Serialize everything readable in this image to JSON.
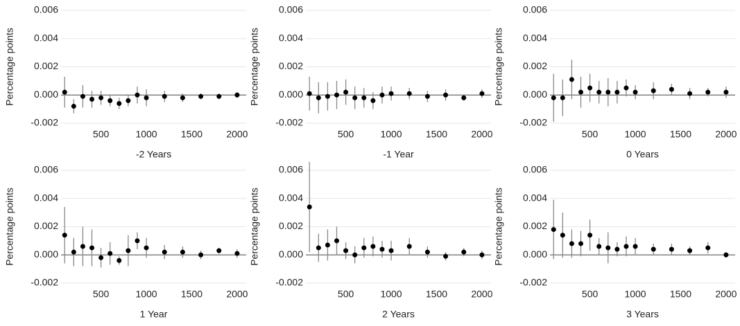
{
  "chart_data": [
    {
      "type": "errorbar",
      "xlabel": "-2 Years",
      "ylabel": "Percentage points",
      "x": [
        100,
        200,
        300,
        400,
        500,
        600,
        700,
        800,
        900,
        1000,
        1200,
        1400,
        1600,
        1800,
        2000
      ],
      "values": [
        0.0002,
        -0.0008,
        -0.0001,
        -0.0003,
        -0.0002,
        -0.0004,
        -0.0006,
        -0.0004,
        0.0,
        -0.0002,
        -0.0001,
        -0.0002,
        -0.0001,
        -0.0001,
        0.0
      ],
      "errors": [
        0.0011,
        0.0005,
        0.0008,
        0.0006,
        0.0005,
        0.0004,
        0.0004,
        0.0004,
        0.0006,
        0.0006,
        0.0004,
        0.0003,
        0.0002,
        0.0002,
        0.0002
      ],
      "color": "#000000",
      "error_color": "#888888",
      "xlim": [
        60,
        2100
      ],
      "xticks": [
        500,
        1000,
        1500,
        2000
      ],
      "ylim": [
        -0.002,
        0.006
      ],
      "yticks": [
        {
          "value": -0.002,
          "label": "-0.002"
        },
        {
          "value": 0,
          "label": "0.000"
        },
        {
          "value": 0.002,
          "label": "0.002"
        },
        {
          "value": 0.004,
          "label": "0.004"
        },
        {
          "value": 0.006,
          "label": "0.006"
        }
      ],
      "grid": true
    },
    {
      "type": "errorbar",
      "xlabel": "-1 Year",
      "ylabel": "Percentage points",
      "x": [
        100,
        200,
        300,
        400,
        500,
        600,
        700,
        800,
        900,
        1000,
        1200,
        1400,
        1600,
        1800,
        2000
      ],
      "values": [
        0.0001,
        -0.0002,
        -0.0001,
        0.0,
        0.0002,
        -0.0002,
        -0.0002,
        -0.0004,
        0.0,
        0.0001,
        0.0001,
        -0.0001,
        0.0,
        -0.0002,
        0.0001
      ],
      "errors": [
        0.0012,
        0.0011,
        0.001,
        0.001,
        0.0009,
        0.0008,
        0.0007,
        0.0006,
        0.0006,
        0.0005,
        0.0004,
        0.0004,
        0.0004,
        0.0002,
        0.0003
      ],
      "color": "#000000",
      "error_color": "#888888",
      "xlim": [
        60,
        2100
      ],
      "xticks": [
        500,
        1000,
        1500,
        2000
      ],
      "ylim": [
        -0.002,
        0.006
      ],
      "yticks": [
        {
          "value": -0.002,
          "label": "-0.002"
        },
        {
          "value": 0,
          "label": "0.000"
        },
        {
          "value": 0.002,
          "label": "0.002"
        },
        {
          "value": 0.004,
          "label": "0.004"
        },
        {
          "value": 0.006,
          "label": "0.006"
        }
      ],
      "grid": true
    },
    {
      "type": "errorbar",
      "xlabel": "0 Years",
      "ylabel": "Percentage points",
      "x": [
        100,
        200,
        300,
        400,
        500,
        600,
        700,
        800,
        900,
        1000,
        1200,
        1400,
        1600,
        1800,
        2000
      ],
      "values": [
        -0.0002,
        -0.0002,
        0.0011,
        0.0002,
        0.0005,
        0.0002,
        0.0002,
        0.0002,
        0.0005,
        0.0002,
        0.0003,
        0.0004,
        0.0001,
        0.0002,
        0.0002
      ],
      "errors": [
        0.0017,
        0.0013,
        0.0014,
        0.0011,
        0.001,
        0.0008,
        0.001,
        0.0008,
        0.0006,
        0.0005,
        0.0006,
        0.0004,
        0.0004,
        0.0003,
        0.0004
      ],
      "color": "#000000",
      "error_color": "#888888",
      "xlim": [
        60,
        2100
      ],
      "xticks": [
        500,
        1000,
        1500,
        2000
      ],
      "ylim": [
        -0.002,
        0.006
      ],
      "yticks": [
        {
          "value": -0.002,
          "label": "-0.002"
        },
        {
          "value": 0,
          "label": "0.000"
        },
        {
          "value": 0.002,
          "label": "0.002"
        },
        {
          "value": 0.004,
          "label": "0.004"
        },
        {
          "value": 0.006,
          "label": "0.006"
        }
      ],
      "grid": true
    },
    {
      "type": "errorbar",
      "xlabel": "1 Year",
      "ylabel": "Percentage points",
      "x": [
        100,
        200,
        300,
        400,
        500,
        600,
        700,
        800,
        900,
        1000,
        1200,
        1400,
        1600,
        1800,
        2000
      ],
      "values": [
        0.0014,
        0.0002,
        0.0006,
        0.0005,
        -0.0002,
        0.0001,
        -0.0004,
        0.0003,
        0.001,
        0.0005,
        0.0002,
        0.0002,
        0.0,
        0.0003,
        0.0001
      ],
      "errors": [
        0.002,
        0.001,
        0.0014,
        0.0013,
        0.0007,
        0.0008,
        0.0003,
        0.0011,
        0.0006,
        0.0007,
        0.0005,
        0.0004,
        0.0003,
        0.0002,
        0.0003
      ],
      "color": "#000000",
      "error_color": "#888888",
      "xlim": [
        60,
        2100
      ],
      "xticks": [
        500,
        1000,
        1500,
        2000
      ],
      "ylim": [
        -0.002,
        0.006
      ],
      "yticks": [
        {
          "value": -0.002,
          "label": "-0.002"
        },
        {
          "value": 0,
          "label": "0.000"
        },
        {
          "value": 0.002,
          "label": "0.002"
        },
        {
          "value": 0.004,
          "label": "0.004"
        },
        {
          "value": 0.006,
          "label": "0.006"
        }
      ],
      "grid": true
    },
    {
      "type": "errorbar",
      "xlabel": "2 Years",
      "ylabel": "Percentage points",
      "x": [
        100,
        200,
        300,
        400,
        500,
        600,
        700,
        800,
        900,
        1000,
        1200,
        1400,
        1600,
        1800,
        2000
      ],
      "values": [
        0.0034,
        0.0005,
        0.0007,
        0.001,
        0.0003,
        0.0,
        0.0005,
        0.0006,
        0.0004,
        0.0003,
        0.0006,
        0.0002,
        -0.0001,
        0.0002,
        0.0
      ],
      "errors": [
        0.0032,
        0.001,
        0.0011,
        0.001,
        0.0006,
        0.0006,
        0.0007,
        0.0007,
        0.0006,
        0.0007,
        0.0006,
        0.0004,
        0.0003,
        0.0003,
        0.0003
      ],
      "color": "#000000",
      "error_color": "#888888",
      "xlim": [
        60,
        2100
      ],
      "xticks": [
        500,
        1000,
        1500,
        2000
      ],
      "ylim": [
        -0.002,
        0.006
      ],
      "yticks": [
        {
          "value": -0.002,
          "label": "-0.002"
        },
        {
          "value": 0,
          "label": "0.000"
        },
        {
          "value": 0.002,
          "label": "0.002"
        },
        {
          "value": 0.004,
          "label": "0.004"
        },
        {
          "value": 0.006,
          "label": "0.006"
        }
      ],
      "grid": true
    },
    {
      "type": "errorbar",
      "xlabel": "3 Years",
      "ylabel": "Percentage points",
      "x": [
        100,
        200,
        300,
        400,
        500,
        600,
        700,
        800,
        900,
        1000,
        1200,
        1400,
        1600,
        1800,
        2000
      ],
      "values": [
        0.0018,
        0.0014,
        0.0008,
        0.0008,
        0.0014,
        0.0006,
        0.0005,
        0.0004,
        0.0006,
        0.0006,
        0.0004,
        0.0004,
        0.0003,
        0.0005,
        0.0
      ],
      "errors": [
        0.0021,
        0.0016,
        0.001,
        0.0009,
        0.0011,
        0.0006,
        0.0011,
        0.0005,
        0.0007,
        0.0006,
        0.0004,
        0.0004,
        0.0003,
        0.0004,
        0.0002
      ],
      "color": "#000000",
      "error_color": "#888888",
      "xlim": [
        60,
        2100
      ],
      "xticks": [
        500,
        1000,
        1500,
        2000
      ],
      "ylim": [
        -0.002,
        0.006
      ],
      "yticks": [
        {
          "value": -0.002,
          "label": "-0.002"
        },
        {
          "value": 0,
          "label": "0.000"
        },
        {
          "value": 0.002,
          "label": "0.002"
        },
        {
          "value": 0.004,
          "label": "0.004"
        },
        {
          "value": 0.006,
          "label": "0.006"
        }
      ],
      "grid": true
    }
  ]
}
